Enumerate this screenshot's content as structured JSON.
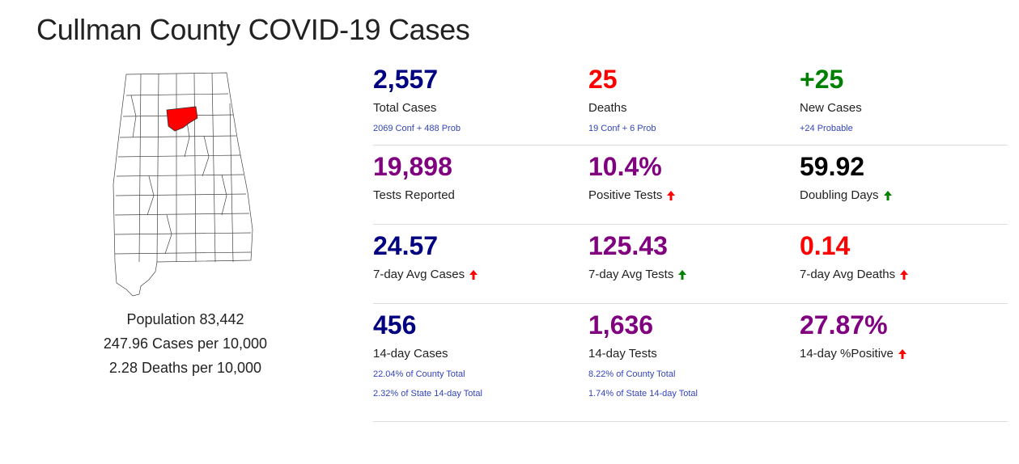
{
  "page": {
    "title": "Cullman County COVID-19 Cases"
  },
  "map": {
    "state": "Alabama",
    "highlight_county": "Cullman",
    "highlight_color": "#ff0000"
  },
  "county_info": {
    "population": "Population 83,442",
    "cases_per_10k": "247.96 Cases per 10,000",
    "deaths_per_10k": "2.28 Deaths per 10,000"
  },
  "colors": {
    "navy": "#000080",
    "red": "#ff0000",
    "green": "#008000",
    "purple": "#800080",
    "black": "#000000",
    "link_blue": "#3344bb"
  },
  "stats": {
    "total_cases": {
      "value": "2,557",
      "label": "Total Cases",
      "sub": "2069 Conf + 488 Prob"
    },
    "deaths": {
      "value": "25",
      "label": "Deaths",
      "sub": "19 Conf + 6 Prob"
    },
    "new_cases": {
      "value": "+25",
      "label": "New Cases",
      "sub": "+24 Probable"
    },
    "tests_reported": {
      "value": "19,898",
      "label": "Tests Reported"
    },
    "positive_tests": {
      "value": "10.4%",
      "label": "Positive Tests",
      "trend": "up-red"
    },
    "doubling_days": {
      "value": "59.92",
      "label": "Doubling Days",
      "trend": "up-green"
    },
    "avg7_cases": {
      "value": "24.57",
      "label": "7-day Avg Cases",
      "trend": "up-red"
    },
    "avg7_tests": {
      "value": "125.43",
      "label": "7-day Avg Tests",
      "trend": "up-green"
    },
    "avg7_deaths": {
      "value": "0.14",
      "label": "7-day Avg Deaths",
      "trend": "up-red"
    },
    "cases_14": {
      "value": "456",
      "label": "14-day Cases",
      "sub1": "22.04% of County Total",
      "sub2": "2.32% of State 14-day Total"
    },
    "tests_14": {
      "value": "1,636",
      "label": "14-day Tests",
      "sub1": "8.22% of County Total",
      "sub2": "1.74% of State 14-day Total"
    },
    "positive_14": {
      "value": "27.87%",
      "label": "14-day %Positive",
      "trend": "up-red"
    }
  }
}
